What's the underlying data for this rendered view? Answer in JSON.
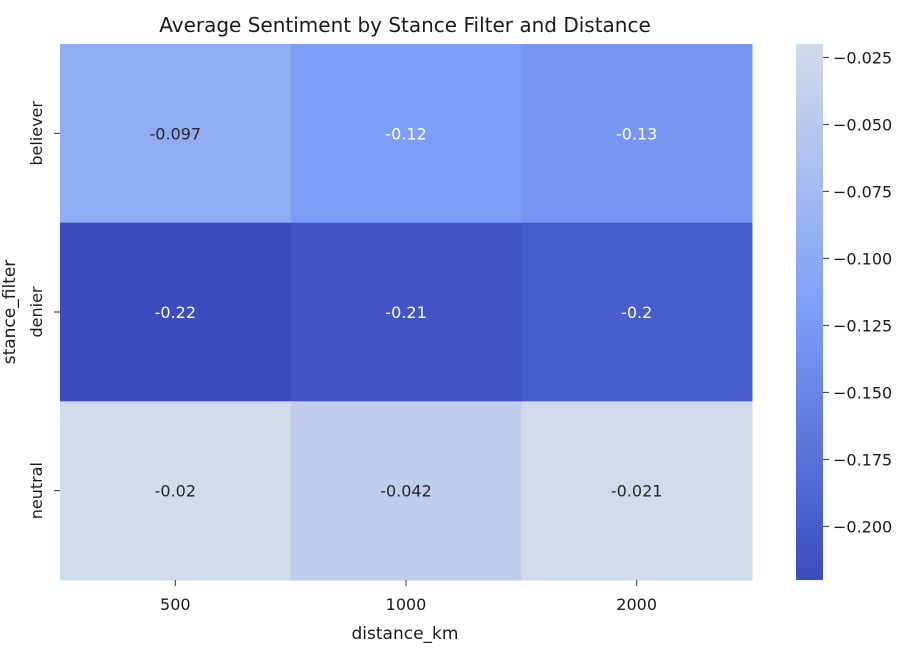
{
  "chart_data": {
    "type": "heatmap",
    "title": "Average Sentiment by Stance Filter and Distance",
    "xlabel": "distance_km",
    "ylabel": "stance_filter",
    "x_categories": [
      "500",
      "1000",
      "2000"
    ],
    "y_categories": [
      "believer",
      "denier",
      "neutral"
    ],
    "values": [
      [
        -0.097,
        -0.12,
        -0.13
      ],
      [
        -0.22,
        -0.21,
        -0.2
      ],
      [
        -0.02,
        -0.042,
        -0.021
      ]
    ],
    "cell_labels": [
      [
        "-0.097",
        "-0.12",
        "-0.13"
      ],
      [
        "-0.22",
        "-0.21",
        "-0.2"
      ],
      [
        "-0.02",
        "-0.042",
        "-0.021"
      ]
    ],
    "colorbar": {
      "range": [
        -0.22,
        -0.02
      ],
      "ticks": [
        -0.025,
        -0.05,
        -0.075,
        -0.1,
        -0.125,
        -0.15,
        -0.175,
        -0.2
      ],
      "tick_labels": [
        "−0.025",
        "−0.050",
        "−0.075",
        "−0.100",
        "−0.125",
        "−0.150",
        "−0.175",
        "−0.200"
      ],
      "colors": {
        "low": "#3b4cc0",
        "mid": "#7d9ef7",
        "high": "#d1dbea"
      }
    }
  }
}
